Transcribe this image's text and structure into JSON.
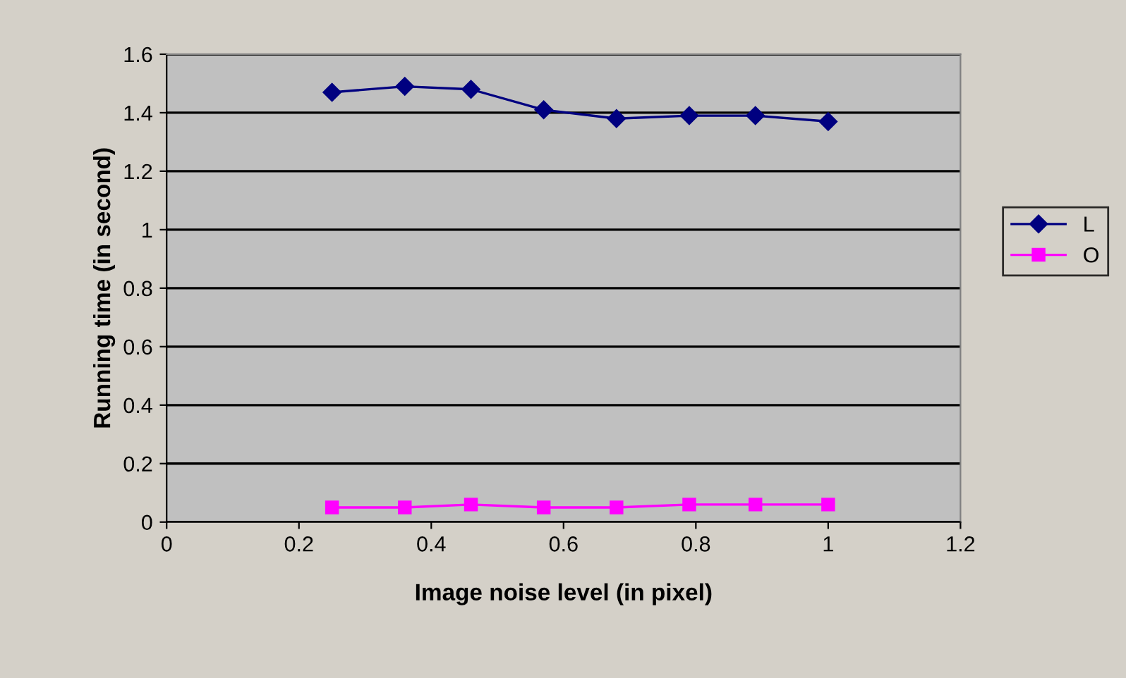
{
  "chart_data": {
    "type": "line",
    "xlabel": "Image noise level (in pixel)",
    "ylabel": "Running time (in second)",
    "x": [
      0.25,
      0.36,
      0.46,
      0.57,
      0.68,
      0.79,
      0.89,
      1.0
    ],
    "series": [
      {
        "name": "L",
        "color": "#000080",
        "marker": "diamond",
        "values": [
          1.47,
          1.49,
          1.48,
          1.41,
          1.38,
          1.39,
          1.39,
          1.37
        ]
      },
      {
        "name": "O",
        "color": "#ff00ff",
        "marker": "square",
        "values": [
          0.05,
          0.05,
          0.06,
          0.05,
          0.05,
          0.06,
          0.06,
          0.06
        ]
      }
    ],
    "xlim": [
      0,
      1.2
    ],
    "xticks": [
      0,
      0.2,
      0.4,
      0.6,
      0.8,
      1,
      1.2
    ],
    "ylim": [
      0,
      1.6
    ],
    "yticks": [
      0,
      0.2,
      0.4,
      0.6,
      0.8,
      1,
      1.2,
      1.4,
      1.6
    ],
    "grid": "y",
    "legend": "right",
    "line_style": "solid"
  }
}
